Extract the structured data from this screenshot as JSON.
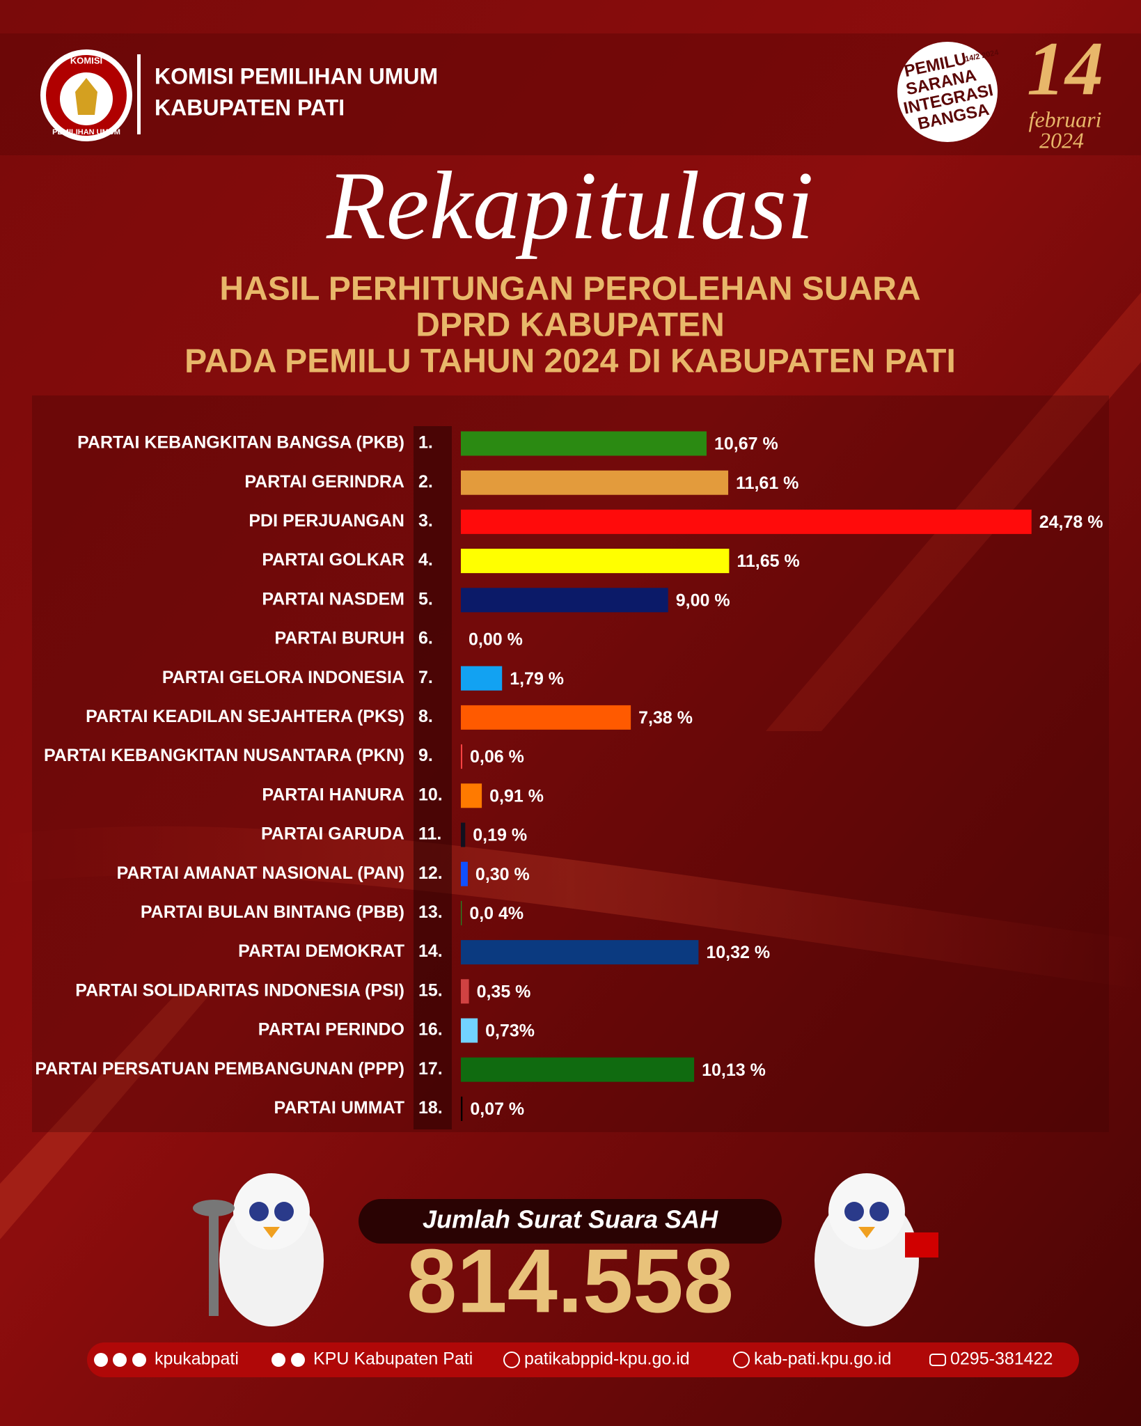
{
  "header": {
    "logo_text_top": "KOMISI",
    "logo_text_bottom": "PEMILIHAN UMUM",
    "org_line1": "KOMISI PEMILIHAN UMUM",
    "org_line2": "KABUPATEN PATI",
    "badge": [
      "PEMILU",
      "SARANA",
      "INTEGRASI",
      "BANGSA"
    ],
    "badge_date": "14/2 2024",
    "date_day": "14",
    "date_month": "februari",
    "date_year": "2024"
  },
  "title": "Rekapitulasi",
  "subtitle": [
    "HASIL PERHITUNGAN PEROLEHAN SUARA",
    "DPRD KABUPATEN",
    "PADA PEMILU TAHUN 2024 DI KABUPATEN PATI"
  ],
  "chart_data": {
    "type": "hbar",
    "ranks": [
      "1.",
      "2.",
      "3.",
      "4.",
      "5.",
      "6.",
      "7.",
      "8.",
      "9.",
      "10.",
      "11.",
      "12.",
      "13.",
      "14.",
      "15.",
      "16.",
      "17.",
      "18."
    ],
    "categories": [
      "PARTAI KEBANGKITAN BANGSA (PKB)",
      "PARTAI GERINDRA",
      "PDI PERJUANGAN",
      "PARTAI GOLKAR",
      "PARTAI NASDEM",
      "PARTAI BURUH",
      "PARTAI GELORA INDONESIA",
      "PARTAI KEADILAN SEJAHTERA (PKS)",
      "PARTAI KEBANGKITAN NUSANTARA (PKN)",
      "PARTAI HANURA",
      "PARTAI GARUDA",
      "PARTAI AMANAT NASIONAL (PAN)",
      "PARTAI BULAN BINTANG (PBB)",
      "PARTAI DEMOKRAT",
      "PARTAI SOLIDARITAS INDONESIA (PSI)",
      "PARTAI PERINDO",
      "PARTAI PERSATUAN PEMBANGUNAN (PPP)",
      "PARTAI UMMAT"
    ],
    "values": [
      10.67,
      11.61,
      24.78,
      11.65,
      9.0,
      0.0,
      1.79,
      7.38,
      0.06,
      0.91,
      0.19,
      0.3,
      0.04,
      10.32,
      0.35,
      0.73,
      10.13,
      0.07
    ],
    "value_labels": [
      "10,67 %",
      "11,61 %",
      "24,78 %",
      "11,65 %",
      "9,00 %",
      "0,00 %",
      "1,79 %",
      "7,38 %",
      "0,06 %",
      "0,91 %",
      "0,19 %",
      "0,30 %",
      "0,0 4%",
      "10,32 %",
      "0,35 %",
      "0,73%",
      "10,13 %",
      "0,07 %"
    ],
    "colors": [
      "#2b8a12",
      "#e39b3c",
      "#ff0b0b",
      "#ffff00",
      "#0b1a68",
      "#e39050",
      "#12a2f2",
      "#ff5a00",
      "#ff4343",
      "#ff7a00",
      "#11111f",
      "#1050ff",
      "#238523",
      "#0b3a80",
      "#d04242",
      "#72d2ff",
      "#106b10",
      "#000000"
    ],
    "xlim": [
      0,
      25
    ]
  },
  "total": {
    "label": "Jumlah  Surat Suara SAH",
    "value": "814.558"
  },
  "footer": [
    "kpukabpati",
    "KPU Kabupaten Pati",
    "patikabppid-kpu.go.id",
    "kab-pati.kpu.go.id",
    "0295-381422"
  ]
}
